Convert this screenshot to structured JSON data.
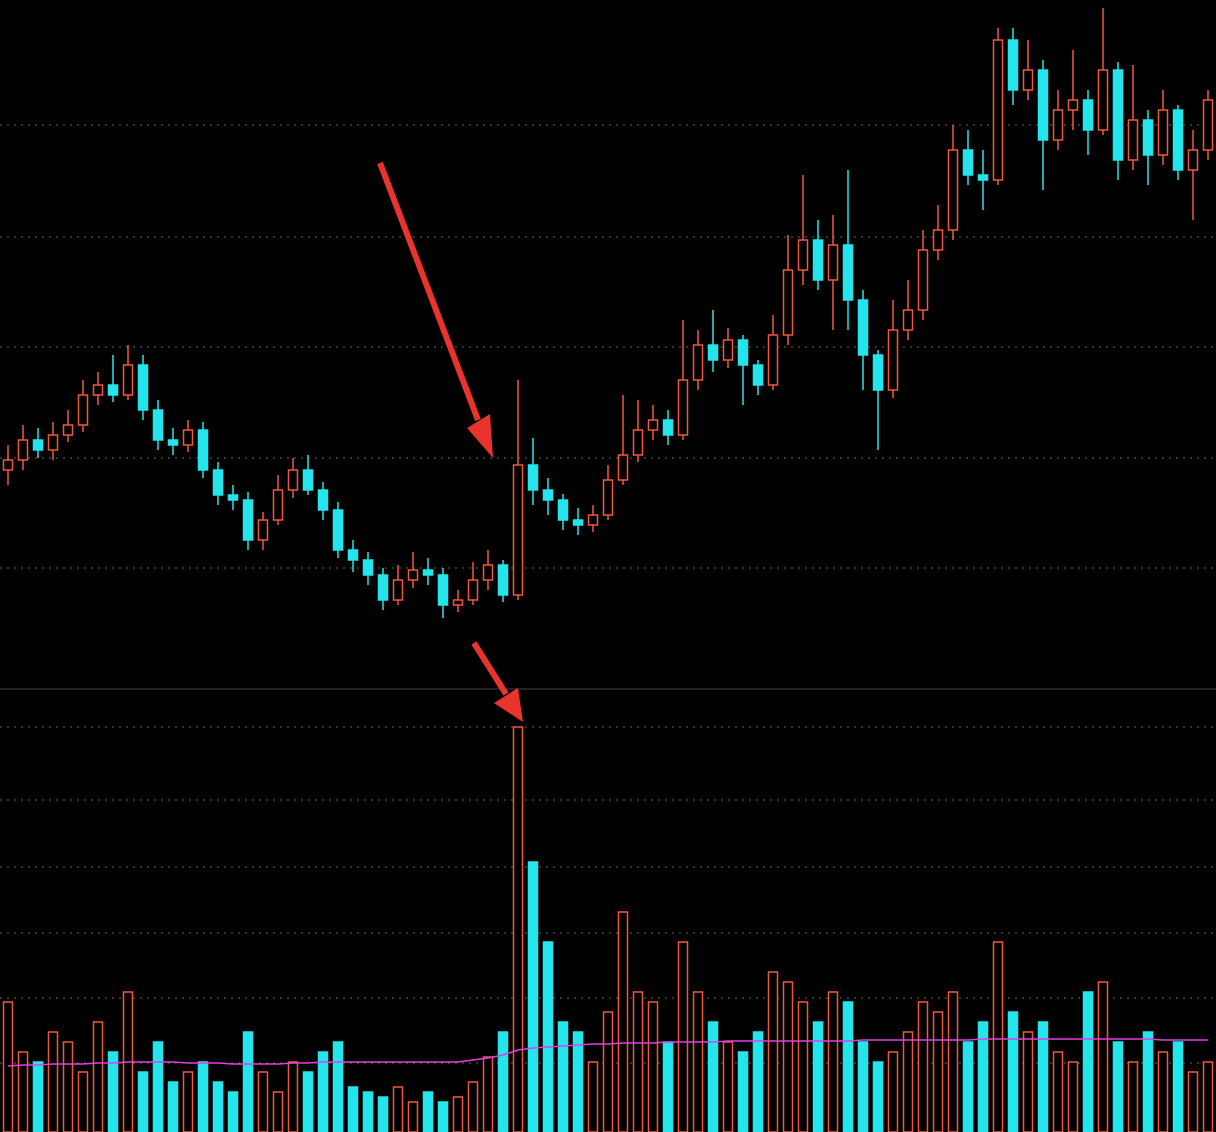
{
  "chart_data": {
    "type": "candlestick",
    "open": [
      220,
      230,
      250,
      240,
      255,
      265,
      295,
      305,
      295,
      325,
      280,
      250,
      245,
      260,
      220,
      195,
      190,
      150,
      170,
      200,
      220,
      200,
      180,
      140,
      130,
      115,
      90,
      110,
      120,
      115,
      85,
      90,
      110,
      125,
      95,
      225,
      200,
      190,
      170,
      165,
      175,
      210,
      235,
      260,
      270,
      255,
      310,
      345,
      330,
      350,
      325,
      305,
      355,
      420,
      450,
      410,
      445,
      390,
      335,
      300,
      360,
      380,
      440,
      460,
      540,
      515,
      510,
      650,
      600,
      620,
      550,
      580,
      590,
      560,
      620,
      530,
      570,
      535,
      580,
      520,
      540
    ],
    "high": [
      245,
      265,
      262,
      268,
      280,
      310,
      318,
      335,
      345,
      335,
      290,
      262,
      270,
      268,
      228,
      205,
      198,
      178,
      215,
      232,
      235,
      208,
      188,
      150,
      138,
      122,
      125,
      138,
      132,
      122,
      100,
      128,
      140,
      130,
      310,
      252,
      212,
      196,
      182,
      185,
      225,
      295,
      290,
      285,
      280,
      370,
      360,
      380,
      362,
      355,
      330,
      375,
      455,
      515,
      470,
      475,
      520,
      400,
      340,
      390,
      410,
      460,
      485,
      565,
      560,
      540,
      662,
      662,
      650,
      630,
      600,
      640,
      600,
      682,
      628,
      625,
      580,
      600,
      585,
      560,
      600
    ],
    "low": [
      205,
      220,
      232,
      230,
      248,
      258,
      285,
      288,
      290,
      270,
      240,
      235,
      238,
      212,
      185,
      180,
      140,
      140,
      165,
      192,
      195,
      170,
      132,
      118,
      105,
      80,
      85,
      102,
      105,
      72,
      78,
      85,
      100,
      88,
      90,
      185,
      175,
      160,
      155,
      158,
      170,
      205,
      228,
      250,
      245,
      250,
      300,
      318,
      322,
      285,
      295,
      300,
      345,
      405,
      400,
      360,
      360,
      300,
      240,
      292,
      350,
      370,
      430,
      450,
      505,
      480,
      505,
      585,
      590,
      500,
      540,
      560,
      535,
      555,
      510,
      520,
      505,
      525,
      510,
      470,
      530
    ],
    "close": [
      230,
      250,
      240,
      255,
      265,
      295,
      305,
      295,
      325,
      280,
      250,
      245,
      260,
      220,
      195,
      190,
      150,
      170,
      200,
      220,
      200,
      180,
      140,
      130,
      115,
      90,
      110,
      120,
      115,
      85,
      90,
      110,
      125,
      95,
      225,
      200,
      190,
      170,
      165,
      175,
      210,
      235,
      260,
      270,
      255,
      310,
      345,
      330,
      350,
      325,
      305,
      355,
      420,
      450,
      410,
      445,
      390,
      335,
      300,
      360,
      380,
      440,
      460,
      540,
      515,
      510,
      650,
      600,
      620,
      550,
      580,
      590,
      560,
      620,
      530,
      570,
      535,
      580,
      520,
      540,
      590
    ],
    "volume": [
      130,
      80,
      70,
      100,
      90,
      60,
      110,
      80,
      140,
      60,
      90,
      50,
      60,
      70,
      50,
      40,
      100,
      60,
      40,
      70,
      60,
      80,
      90,
      45,
      40,
      35,
      45,
      30,
      40,
      30,
      35,
      50,
      75,
      100,
      405,
      270,
      190,
      110,
      100,
      70,
      120,
      220,
      140,
      130,
      90,
      190,
      140,
      110,
      90,
      80,
      100,
      160,
      150,
      130,
      110,
      140,
      130,
      90,
      70,
      80,
      100,
      130,
      120,
      140,
      90,
      110,
      190,
      120,
      100,
      110,
      80,
      70,
      140,
      150,
      90,
      70,
      100,
      80,
      90,
      60,
      70
    ],
    "volume_ma": [
      66,
      67,
      67,
      68,
      68,
      68,
      69,
      69,
      70,
      70,
      70,
      70,
      69,
      69,
      69,
      68,
      68,
      68,
      68,
      69,
      69,
      70,
      70,
      70,
      70,
      70,
      70,
      70,
      70,
      70,
      70,
      72,
      74,
      77,
      82,
      84,
      85,
      86,
      87,
      88,
      88,
      89,
      89,
      89,
      90,
      90,
      90,
      90,
      91,
      91,
      91,
      91,
      91,
      91,
      91,
      91,
      91,
      92,
      92,
      92,
      92,
      92,
      92,
      92,
      92,
      93,
      93,
      93,
      93,
      93,
      93,
      93,
      93,
      93,
      93,
      93,
      93,
      92,
      92,
      92,
      92
    ],
    "ylim": [
      0,
      690
    ],
    "yticks": [
      565,
      453,
      343,
      232,
      122
    ],
    "volume_ylim": [
      0,
      442
    ],
    "volume_yticks": [
      405,
      332,
      265,
      199,
      134,
      69
    ],
    "grid": true,
    "up_color": "#f0583c",
    "down_color": "#24e4ec",
    "ma_color": "#e040e0"
  }
}
